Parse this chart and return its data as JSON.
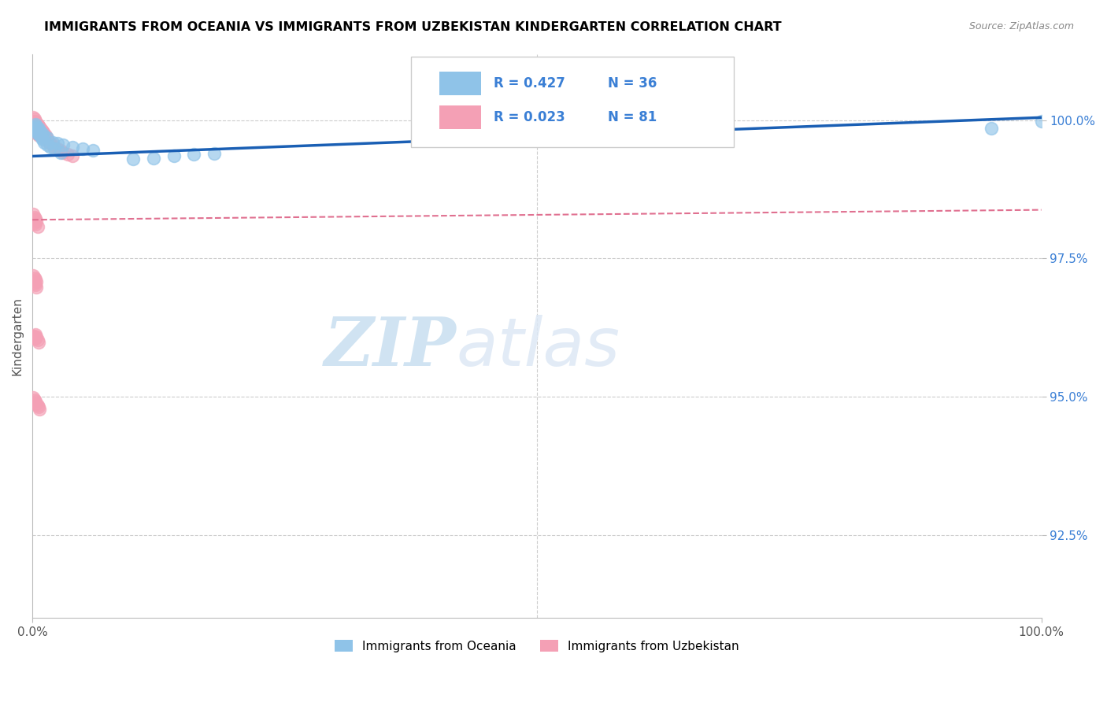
{
  "title": "IMMIGRANTS FROM OCEANIA VS IMMIGRANTS FROM UZBEKISTAN KINDERGARTEN CORRELATION CHART",
  "source_text": "Source: ZipAtlas.com",
  "ylabel": "Kindergarten",
  "xlim": [
    0.0,
    1.0
  ],
  "ylim": [
    0.91,
    1.012
  ],
  "yticks": [
    0.925,
    0.95,
    0.975,
    1.0
  ],
  "ytick_labels": [
    "92.5%",
    "95.0%",
    "97.5%",
    "100.0%"
  ],
  "xticks": [
    0.0,
    1.0
  ],
  "xtick_labels": [
    "0.0%",
    "100.0%"
  ],
  "legend_r_oceania": "R = 0.427",
  "legend_n_oceania": "N = 36",
  "legend_r_uzbekistan": "R = 0.023",
  "legend_n_uzbekistan": "N = 81",
  "legend_label_oceania": "Immigrants from Oceania",
  "legend_label_uzbekistan": "Immigrants from Uzbekistan",
  "color_oceania": "#8fc3e8",
  "color_uzbekistan": "#f4a0b5",
  "color_trend_oceania": "#1a5fb4",
  "color_trend_uzbekistan": "#e07090",
  "watermark_zip": "ZIP",
  "watermark_atlas": "atlas",
  "watermark_color_zip": "#c8dff0",
  "watermark_color_atlas": "#c8dff0",
  "oceania_x": [
    0.002,
    0.003,
    0.004,
    0.005,
    0.006,
    0.007,
    0.008,
    0.01,
    0.012,
    0.015,
    0.02,
    0.025,
    0.03,
    0.04,
    0.05,
    0.06,
    0.003,
    0.004,
    0.005,
    0.006,
    0.007,
    0.008,
    0.009,
    0.01,
    0.012,
    0.015,
    0.018,
    0.022,
    0.028,
    0.1,
    0.12,
    0.14,
    0.16,
    0.18,
    0.95,
    1.0
  ],
  "oceania_y": [
    0.9985,
    0.999,
    0.998,
    0.9975,
    0.9985,
    0.9978,
    0.998,
    0.9975,
    0.997,
    0.9968,
    0.996,
    0.9958,
    0.9955,
    0.9952,
    0.9948,
    0.9945,
    0.9992,
    0.9988,
    0.9982,
    0.9978,
    0.9975,
    0.9972,
    0.9968,
    0.9965,
    0.996,
    0.9955,
    0.9952,
    0.9948,
    0.9942,
    0.993,
    0.9932,
    0.9935,
    0.9938,
    0.994,
    0.9985,
    0.9998
  ],
  "uzbekistan_x": [
    0.001,
    0.001,
    0.001,
    0.001,
    0.002,
    0.002,
    0.002,
    0.002,
    0.002,
    0.003,
    0.003,
    0.003,
    0.003,
    0.003,
    0.004,
    0.004,
    0.004,
    0.004,
    0.005,
    0.005,
    0.005,
    0.005,
    0.006,
    0.006,
    0.006,
    0.006,
    0.007,
    0.007,
    0.007,
    0.008,
    0.008,
    0.009,
    0.009,
    0.01,
    0.01,
    0.011,
    0.012,
    0.012,
    0.013,
    0.014,
    0.015,
    0.016,
    0.018,
    0.02,
    0.022,
    0.025,
    0.028,
    0.03,
    0.035,
    0.04,
    0.001,
    0.001,
    0.002,
    0.002,
    0.003,
    0.003,
    0.004,
    0.005,
    0.001,
    0.001,
    0.002,
    0.002,
    0.003,
    0.003,
    0.004,
    0.004,
    0.001,
    0.002,
    0.002,
    0.003,
    0.003,
    0.004,
    0.005,
    0.006,
    0.001,
    0.002,
    0.003,
    0.004,
    0.005,
    0.006,
    0.007
  ],
  "uzbekistan_y": [
    1.0005,
    0.9998,
    0.9995,
    0.999,
    1.0002,
    0.9995,
    0.999,
    0.9985,
    0.998,
    0.9998,
    0.9992,
    0.9988,
    0.9982,
    0.9978,
    0.9995,
    0.999,
    0.9985,
    0.9978,
    0.9992,
    0.9988,
    0.9982,
    0.9975,
    0.999,
    0.9985,
    0.998,
    0.9972,
    0.9988,
    0.9982,
    0.9975,
    0.9985,
    0.9978,
    0.9982,
    0.9975,
    0.998,
    0.9972,
    0.9978,
    0.9975,
    0.9968,
    0.9972,
    0.9968,
    0.9965,
    0.996,
    0.9958,
    0.9955,
    0.9952,
    0.9948,
    0.9945,
    0.9942,
    0.9938,
    0.9935,
    0.983,
    0.982,
    0.9825,
    0.9815,
    0.9822,
    0.9812,
    0.9818,
    0.9808,
    0.972,
    0.971,
    0.9715,
    0.9705,
    0.9712,
    0.9702,
    0.9708,
    0.9698,
    0.961,
    0.961,
    0.9605,
    0.9612,
    0.9605,
    0.9608,
    0.9602,
    0.9598,
    0.9498,
    0.9495,
    0.9492,
    0.9488,
    0.9485,
    0.9482,
    0.9478
  ],
  "trend_oceania_x0": 0.0,
  "trend_oceania_y0": 0.9935,
  "trend_oceania_x1": 1.0,
  "trend_oceania_y1": 1.0005,
  "trend_uzbekistan_x0": 0.0,
  "trend_uzbekistan_y0": 0.982,
  "trend_uzbekistan_x1": 1.0,
  "trend_uzbekistan_y1": 0.9838
}
